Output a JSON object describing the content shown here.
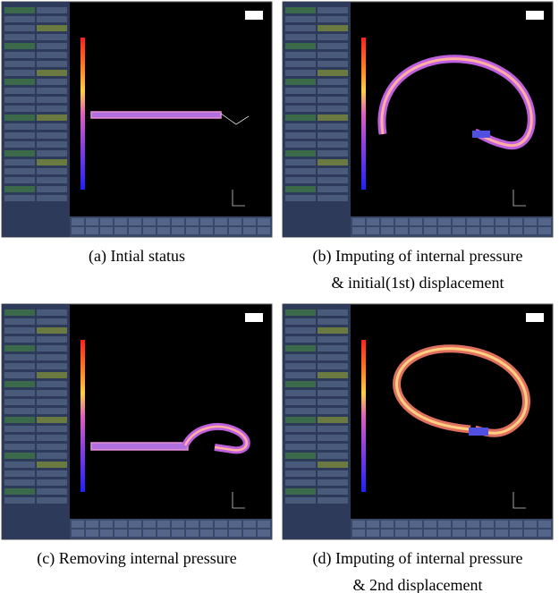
{
  "figure": {
    "panels": [
      {
        "caption": [
          "(a) Intial status"
        ]
      },
      {
        "caption": [
          "(b) Imputing of internal pressure",
          "& initial(1st) displacement"
        ]
      },
      {
        "caption": [
          "(c) Removing internal pressure"
        ]
      },
      {
        "caption": [
          "(d) Imputing of internal pressure",
          "& 2nd displacement"
        ]
      }
    ]
  }
}
